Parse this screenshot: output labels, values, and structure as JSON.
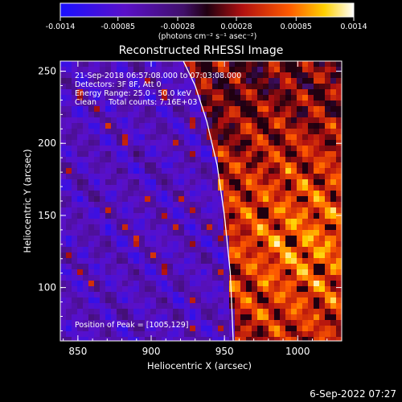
{
  "colorbar": {
    "ticks": [
      "-0.0014",
      "-0.00085",
      "-0.00028",
      "0.00028",
      "0.00085",
      "0.0014"
    ],
    "unit_label": "(photons cm⁻² s⁻¹ asec⁻²)",
    "range": [
      -0.0014,
      0.0014
    ]
  },
  "chart_data": {
    "type": "heatmap",
    "title": "Reconstructed RHESSI Image",
    "xlabel": "Heliocentric X (arcsec)",
    "ylabel": "Heliocentric Y (arcsec)",
    "xlim": [
      838,
      1030
    ],
    "ylim": [
      63,
      257
    ],
    "x_ticks": [
      "850",
      "900",
      "950",
      "1000"
    ],
    "y_ticks": [
      "100",
      "150",
      "200",
      "250"
    ],
    "info_lines": [
      "21-Sep-2018 06:57:08.000 to 07:03:08.000",
      "Detectors: 3F 8F, Att 0",
      "Energy Range: 25.0 - 50.0 keV",
      "Clean     Total counts: 7.16E+03"
    ],
    "peak_label": "Position of Peak = [1005,129]",
    "peak": [
      1005,
      129
    ],
    "limb_points": [
      [
        922,
        257
      ],
      [
        930,
        240
      ],
      [
        938,
        215
      ],
      [
        945,
        185
      ],
      [
        950,
        150
      ],
      [
        954,
        110
      ],
      [
        956,
        63
      ]
    ],
    "colormap": "blue-purple-red-yellow-white",
    "grid": false
  },
  "timestamp": "6-Sep-2022 07:27"
}
